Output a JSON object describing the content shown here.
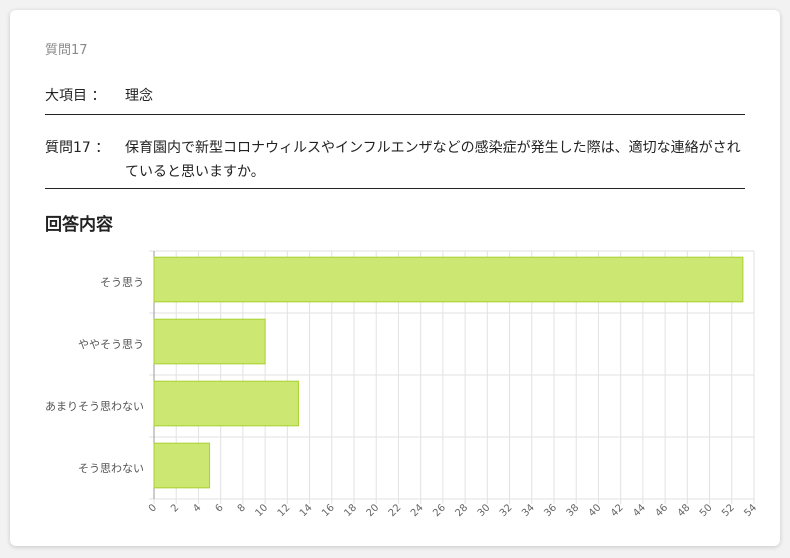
{
  "question_number": "質問17",
  "major_item": {
    "label": "大項目 ：",
    "value": "理念"
  },
  "question": {
    "label": "質問17 ：",
    "text": "保育園内で新型コロナウィルスやインフルエンザなどの感染症が発生した際は、適切な連絡がされていると思いますか。"
  },
  "section_title": "回答内容",
  "colors": {
    "bar_fill": "#cde872",
    "bar_stroke": "#a8d12e",
    "grid": "#e2e2e2"
  },
  "chart_data": {
    "type": "bar",
    "orientation": "horizontal",
    "categories": [
      "そう思う",
      "ややそう思う",
      "あまりそう思わない",
      "そう思わない"
    ],
    "values": [
      53,
      10,
      13,
      5
    ],
    "xlim": [
      0,
      54
    ],
    "xticks": [
      0,
      2,
      4,
      6,
      8,
      10,
      12,
      14,
      16,
      18,
      20,
      22,
      24,
      26,
      28,
      30,
      32,
      34,
      36,
      38,
      40,
      42,
      44,
      46,
      48,
      50,
      52,
      54
    ],
    "grid": true,
    "title": "",
    "xlabel": "",
    "ylabel": ""
  }
}
